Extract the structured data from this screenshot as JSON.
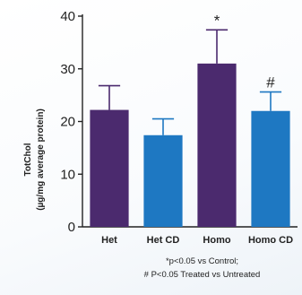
{
  "chart_data": {
    "type": "bar",
    "categories": [
      "Het",
      "Het CD",
      "Homo",
      "Homo CD"
    ],
    "values": [
      22.2,
      17.4,
      31.0,
      22.0
    ],
    "errors": [
      4.6,
      3.1,
      6.4,
      3.6
    ],
    "bar_colors": [
      "#4b2a6e",
      "#1e78c2",
      "#4b2a6e",
      "#1e78c2"
    ],
    "annotations": [
      "",
      "",
      "*",
      "#"
    ],
    "ylabel_line1": "TotChol",
    "ylabel_line2": "(µg/mg average protein)",
    "ylim": [
      0,
      40
    ],
    "yticks": [
      0,
      10,
      20,
      30,
      40
    ],
    "grid": false
  },
  "footnotes": {
    "line1": "*p<0.05 vs Control;",
    "line2": "# P<0.05 Treated vs Untreated"
  }
}
